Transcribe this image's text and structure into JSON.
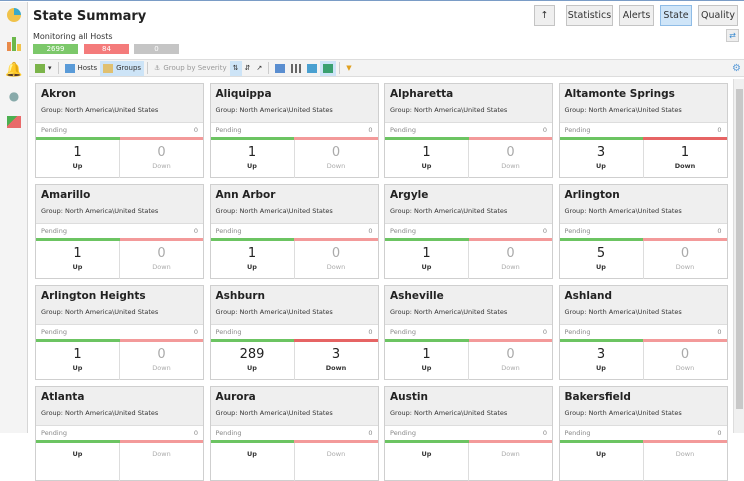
{
  "header": {
    "title": "State Summary",
    "subtitle": "Monitoring all Hosts",
    "counts": {
      "up": "2699",
      "down": "84",
      "pending": "0"
    }
  },
  "nav": {
    "up_icon": "arrow-up-icon",
    "tabs": [
      {
        "label": "Statistics",
        "active": false
      },
      {
        "label": "Alerts",
        "active": false
      },
      {
        "label": "State",
        "active": true
      },
      {
        "label": "Quality",
        "active": false
      }
    ]
  },
  "toolbar": {
    "hosts": "Hosts",
    "groups": "Groups",
    "group_by_severity": "Group by Severity"
  },
  "colors": {
    "up": "#6cc462",
    "down": "#f39a9a",
    "pending": "#c8c8c8",
    "accent": "#cde4f7"
  },
  "labels": {
    "pending": "Pending",
    "up": "Up",
    "down": "Down",
    "group_prefix": "Group: "
  },
  "cards": [
    {
      "name": "Akron",
      "group": "Group: North America\\United States",
      "pending": "0",
      "up": "1",
      "down": "0"
    },
    {
      "name": "Aliquippa",
      "group": "Group: North America\\United States",
      "pending": "0",
      "up": "1",
      "down": "0"
    },
    {
      "name": "Alpharetta",
      "group": "Group: North America\\United States",
      "pending": "0",
      "up": "1",
      "down": "0"
    },
    {
      "name": "Altamonte Springs",
      "group": "Group: North America\\United States",
      "pending": "0",
      "up": "3",
      "down": "1"
    },
    {
      "name": "Amarillo",
      "group": "Group: North America\\United States",
      "pending": "0",
      "up": "1",
      "down": "0"
    },
    {
      "name": "Ann Arbor",
      "group": "Group: North America\\United States",
      "pending": "0",
      "up": "1",
      "down": "0"
    },
    {
      "name": "Argyle",
      "group": "Group: North America\\United States",
      "pending": "0",
      "up": "1",
      "down": "0"
    },
    {
      "name": "Arlington",
      "group": "Group: North America\\United States",
      "pending": "0",
      "up": "5",
      "down": "0"
    },
    {
      "name": "Arlington Heights",
      "group": "Group: North America\\United States",
      "pending": "0",
      "up": "1",
      "down": "0"
    },
    {
      "name": "Ashburn",
      "group": "Group: North America\\United States",
      "pending": "0",
      "up": "289",
      "down": "3"
    },
    {
      "name": "Asheville",
      "group": "Group: North America\\United States",
      "pending": "0",
      "up": "1",
      "down": "0"
    },
    {
      "name": "Ashland",
      "group": "Group: North America\\United States",
      "pending": "0",
      "up": "3",
      "down": "0"
    },
    {
      "name": "Atlanta",
      "group": "Group: North America\\United States",
      "pending": "0",
      "up": "",
      "down": ""
    },
    {
      "name": "Aurora",
      "group": "Group: North America\\United States",
      "pending": "0",
      "up": "",
      "down": ""
    },
    {
      "name": "Austin",
      "group": "Group: North America\\United States",
      "pending": "0",
      "up": "",
      "down": ""
    },
    {
      "name": "Bakersfield",
      "group": "Group: North America\\United States",
      "pending": "0",
      "up": "",
      "down": ""
    }
  ]
}
